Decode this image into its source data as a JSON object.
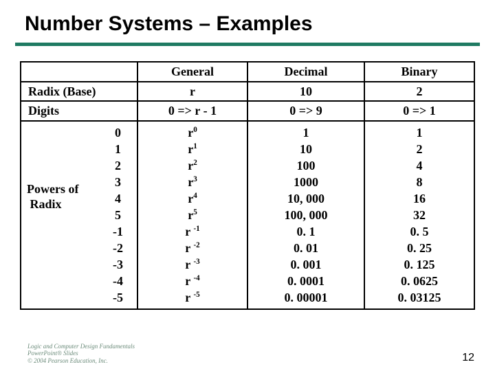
{
  "title": "Number Systems – Examples",
  "rule_color": "#1f7a62",
  "table": {
    "headers": {
      "c0": "",
      "c1": "General",
      "c2": "Decimal",
      "c3": "Binary"
    },
    "radix_row": {
      "label": "Radix (Base)",
      "general": "r",
      "decimal": "10",
      "binary": "2"
    },
    "digits_row": {
      "label": "Digits",
      "general": "0 => r - 1",
      "decimal": "0 => 9",
      "binary": "0 => 1"
    },
    "powers": {
      "label_line1": "Powers of",
      "label_line2": " Radix",
      "exponents": [
        "0",
        "1",
        "2",
        "3",
        "4",
        "5",
        "-1",
        "-2",
        "-3",
        "-4",
        "-5"
      ],
      "general": [
        {
          "base": "r",
          "sup": "0"
        },
        {
          "base": "r",
          "sup": "1"
        },
        {
          "base": "r",
          "sup": "2"
        },
        {
          "base": "r",
          "sup": "3"
        },
        {
          "base": "r",
          "sup": "4"
        },
        {
          "base": "r",
          "sup": "5"
        },
        {
          "base": "r ",
          "sup": "-1"
        },
        {
          "base": "r ",
          "sup": "-2"
        },
        {
          "base": "r ",
          "sup": "-3"
        },
        {
          "base": "r ",
          "sup": "-4"
        },
        {
          "base": "r ",
          "sup": "-5"
        }
      ],
      "decimal": [
        "1",
        "10",
        "100",
        "1000",
        "10, 000",
        "100, 000",
        "0. 1",
        "0. 01",
        "0. 001",
        "0. 0001",
        "0. 00001"
      ],
      "binary": [
        "1",
        "2",
        "4",
        "8",
        "16",
        "32",
        "0. 5",
        "0. 25",
        "0. 125",
        "0. 0625",
        "0. 03125"
      ]
    }
  },
  "footer": {
    "credit_line1": "Logic and Computer Design Fundamentals",
    "credit_line2": "PowerPoint® Slides",
    "credit_line3": "© 2004 Pearson Education, Inc.",
    "page_number": "12"
  }
}
